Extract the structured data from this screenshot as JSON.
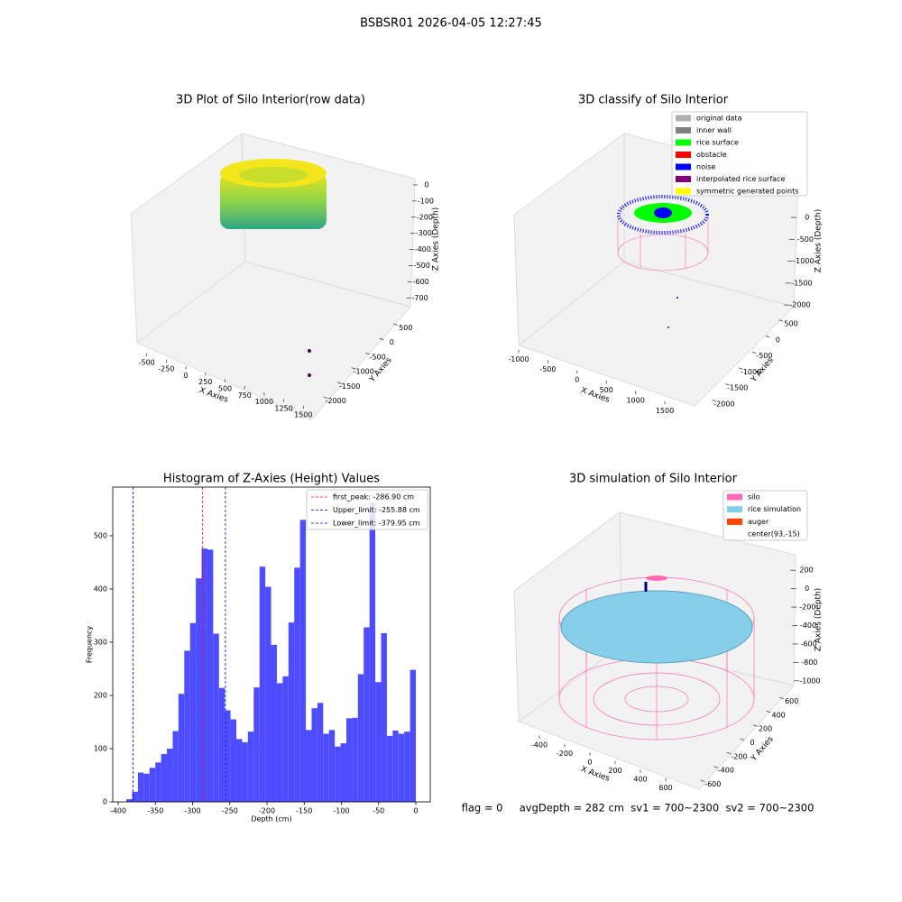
{
  "title": "BSBSR01 2026-04-05 12:27:45",
  "status_text": "flag = 0     avgDepth = 282 cm  sv1 = 700~2300  sv2 = 700~2300",
  "chart_data": [
    {
      "type": "scatter3d",
      "title": "3D Plot of Silo Interior(row data)",
      "xlabel": "X Axies",
      "ylabel": "Y Axies",
      "zlabel": "Z Axies (Depth)",
      "xlim": [
        -600,
        1600
      ],
      "xticks": [
        -500,
        -250,
        0,
        250,
        500,
        750,
        1000,
        1250,
        1500
      ],
      "ylim": [
        -2200,
        700
      ],
      "yticks": [
        500,
        0,
        -500,
        -1000,
        -1500,
        -2000
      ],
      "zlim": [
        -760,
        50
      ],
      "zticks": [
        0,
        -100,
        -200,
        -300,
        -400,
        -500,
        -600,
        -700
      ]
    },
    {
      "type": "scatter3d",
      "title": "3D classify of Silo Interior",
      "xlabel": "X Axies",
      "ylabel": "Y Axies",
      "zlabel": "Z Axies (Depth)",
      "xlim": [
        -1100,
        1700
      ],
      "xticks": [
        -1000,
        -500,
        0,
        500,
        1000,
        1500
      ],
      "ylim": [
        -2200,
        700
      ],
      "yticks": [
        500,
        0,
        -500,
        -1000,
        -1500,
        -2000
      ],
      "zlim": [
        -2100,
        300
      ],
      "zticks": [
        0,
        -500,
        -1000,
        -1500,
        -2000
      ],
      "legend": [
        {
          "name": "original data",
          "color": "#b0b0b0"
        },
        {
          "name": "inner wall",
          "color": "#808080"
        },
        {
          "name": "rice surface",
          "color": "#00ff00"
        },
        {
          "name": "obstacle",
          "color": "#ff0000"
        },
        {
          "name": "noise",
          "color": "#0000ff"
        },
        {
          "name": "interpolated rice surface",
          "color": "#800080"
        },
        {
          "name": "symmetric generated points",
          "color": "#ffff00"
        }
      ]
    },
    {
      "type": "histogram",
      "title": "Histogram of Z-Axies (Height) Values",
      "xlabel": "Depth (cm)",
      "ylabel": "Frequency",
      "color": "#4d4dff",
      "bins": [
        -389,
        -381.22,
        -373.44,
        -365.66,
        -357.88,
        -350.1,
        -342.32,
        -334.54,
        -326.76,
        -318.98,
        -311.2,
        -303.42,
        -295.64,
        -287.86,
        -280.08,
        -272.3,
        -264.52,
        -256.74,
        -248.96,
        -241.18,
        -233.4,
        -225.62,
        -217.84,
        -210.06,
        -202.28,
        -194.5,
        -186.72,
        -178.94,
        -171.16,
        -163.38,
        -155.6,
        -147.82,
        -140.04,
        -132.26,
        -124.48,
        -116.7,
        -108.92,
        -101.14,
        -93.36,
        -85.58,
        -77.8,
        -70.02,
        -62.24,
        -54.46,
        -46.68,
        -38.9,
        -31.12,
        -23.34,
        -15.56,
        -7.78,
        0
      ],
      "counts": [
        5,
        19,
        55,
        53,
        64,
        74,
        90,
        100,
        133,
        203,
        284,
        336,
        420,
        476,
        474,
        316,
        214,
        172,
        155,
        118,
        112,
        132,
        215,
        442,
        404,
        295,
        223,
        236,
        337,
        440,
        530,
        135,
        176,
        186,
        128,
        135,
        104,
        110,
        157,
        158,
        240,
        328,
        563,
        225,
        317,
        124,
        134,
        128,
        132,
        248
      ],
      "xlim": [
        -407.3,
        19.4
      ],
      "xticks": [
        -400,
        -350,
        -300,
        -250,
        -200,
        -150,
        -100,
        -50,
        0
      ],
      "ylim": [
        0,
        591.5
      ],
      "yticks": [
        0,
        100,
        200,
        300,
        400,
        500
      ],
      "lines": [
        {
          "label": "first_peak: -286.90 cm",
          "value": -286.9,
          "color": "#ff0000"
        },
        {
          "label": "Upper_limit: -255.88 cm",
          "value": -255.88,
          "color": "#0000ff"
        },
        {
          "label": "Lower_limit: -379.95 cm",
          "value": -379.95,
          "color": "#0000ff"
        }
      ]
    },
    {
      "type": "surface3d",
      "title": "3D simulation of Silo Interior",
      "xlabel": "X Axies",
      "ylabel": "Y Axies",
      "zlabel": "Z Axies (Depth)",
      "xlim": [
        -500,
        700
      ],
      "xticks": [
        -400,
        -200,
        0,
        200,
        400,
        600
      ],
      "ylim": [
        -700,
        700
      ],
      "yticks": [
        600,
        400,
        200,
        0,
        -200,
        -400,
        -600
      ],
      "zlim": [
        -1100,
        300
      ],
      "zticks": [
        200,
        0,
        -200,
        -400,
        -600,
        -800,
        -1000
      ],
      "legend": [
        {
          "name": "silo",
          "color": "#ff69b4"
        },
        {
          "name": "rice simulation",
          "color": "#87ceeb"
        },
        {
          "name": "auger",
          "color": "#ff4500"
        },
        {
          "name": "center(93,-15)"
        }
      ]
    }
  ]
}
